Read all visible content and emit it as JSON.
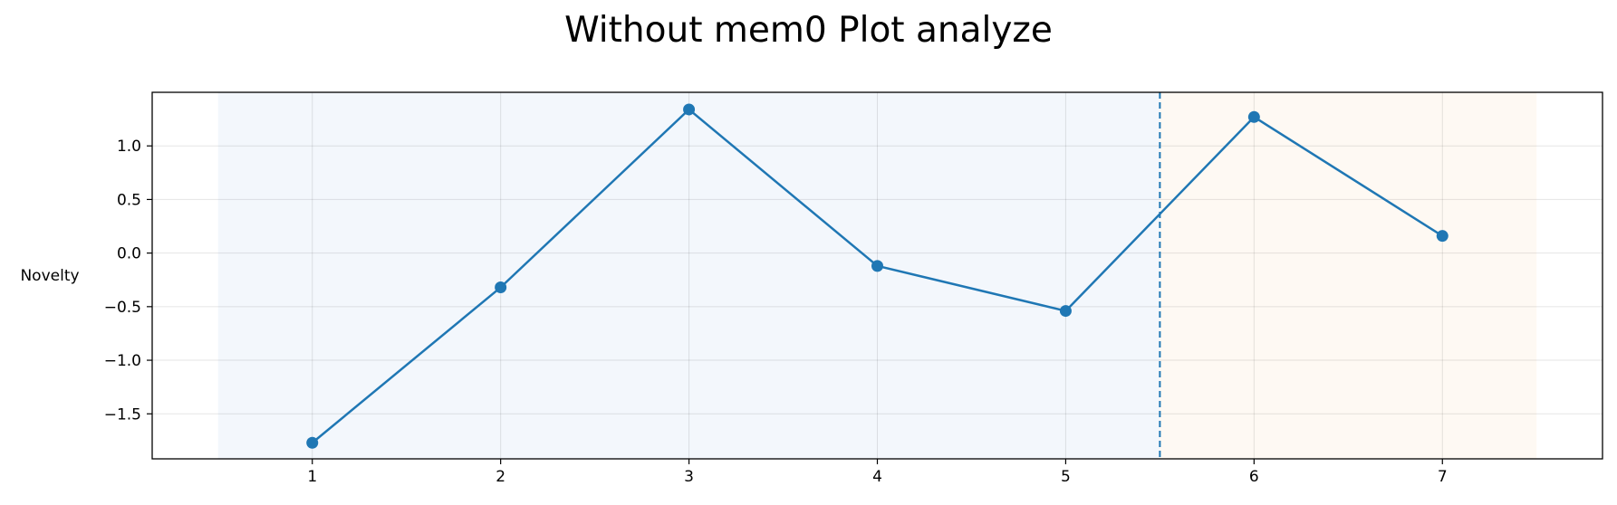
{
  "chart_data": {
    "type": "line",
    "title": "Without mem0 Plot analyze",
    "xlabel": "",
    "ylabel": "Novelty",
    "x": [
      1,
      2,
      3,
      4,
      5,
      6,
      7
    ],
    "series": [
      {
        "values": [
          -1.77,
          -0.32,
          1.34,
          -0.12,
          -0.54,
          1.27,
          0.16
        ],
        "color": "#1f77b4"
      }
    ],
    "xlim": [
      0.15,
      7.85
    ],
    "ylim": [
      -1.92,
      1.5
    ],
    "xticks": [
      1,
      2,
      3,
      4,
      5,
      6,
      7
    ],
    "xtick_labels": [
      "1",
      "2",
      "3",
      "4",
      "5",
      "6",
      "7"
    ],
    "yticks": [
      -1.5,
      -1.0,
      -0.5,
      0.0,
      0.5,
      1.0
    ],
    "ytick_labels": [
      "−1.5",
      "−1.0",
      "−0.5",
      "0.0",
      "0.5",
      "1.0"
    ],
    "grid": true,
    "shaded_regions": [
      {
        "x_start": 0.5,
        "x_end": 5.5,
        "color": "#f3f7fc"
      },
      {
        "x_start": 5.5,
        "x_end": 7.5,
        "color": "#fef9f3"
      }
    ],
    "vertical_line": {
      "x": 5.5,
      "style": "dashed",
      "color": "#1f77b4"
    }
  }
}
